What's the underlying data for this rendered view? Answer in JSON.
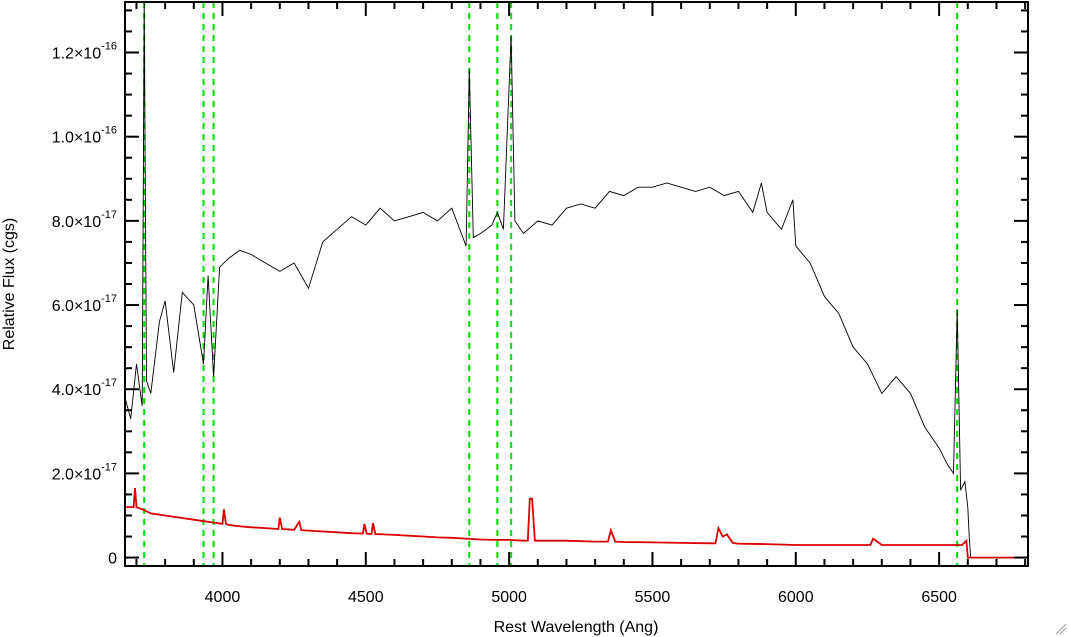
{
  "chart_data": {
    "type": "line",
    "title": "",
    "xlabel": "Rest Wavelength (Ang)",
    "ylabel": "Relative Flux (cgs)",
    "xlim": [
      3660,
      6810
    ],
    "ylim": [
      -2e-18,
      1.32e-16
    ],
    "x_ticks": [
      {
        "value": 4000,
        "label": "4000"
      },
      {
        "value": 4500,
        "label": "4500"
      },
      {
        "value": 5000,
        "label": "5000"
      },
      {
        "value": 5500,
        "label": "5500"
      },
      {
        "value": 6000,
        "label": "6000"
      },
      {
        "value": 6500,
        "label": "6500"
      }
    ],
    "y_ticks": [
      {
        "value": 0,
        "label": "0",
        "exp": ""
      },
      {
        "value": 2e-17,
        "label": "2.0×10",
        "exp": "-17"
      },
      {
        "value": 4e-17,
        "label": "4.0×10",
        "exp": "-17"
      },
      {
        "value": 6e-17,
        "label": "6.0×10",
        "exp": "-17"
      },
      {
        "value": 8e-17,
        "label": "8.0×10",
        "exp": "-17"
      },
      {
        "value": 1e-16,
        "label": "1.0×10",
        "exp": "-16"
      },
      {
        "value": 1.2e-16,
        "label": "1.2×10",
        "exp": "-16"
      }
    ],
    "vertical_markers": [
      3727,
      3934,
      3969,
      4861,
      4959,
      5007,
      6563
    ],
    "series": [
      {
        "color": "#000000",
        "x": [
          3660,
          3680,
          3700,
          3720,
          3727,
          3735,
          3750,
          3780,
          3800,
          3830,
          3860,
          3900,
          3934,
          3950,
          3969,
          3990,
          4020,
          4060,
          4100,
          4150,
          4200,
          4250,
          4300,
          4350,
          4400,
          4450,
          4500,
          4550,
          4600,
          4650,
          4700,
          4750,
          4800,
          4850,
          4861,
          4875,
          4900,
          4940,
          4959,
          4980,
          5007,
          5020,
          5050,
          5100,
          5150,
          5200,
          5250,
          5300,
          5350,
          5400,
          5450,
          5500,
          5550,
          5600,
          5650,
          5700,
          5750,
          5800,
          5850,
          5880,
          5900,
          5950,
          5990,
          6000,
          6050,
          6100,
          6150,
          6200,
          6250,
          6300,
          6350,
          6400,
          6450,
          6500,
          6530,
          6550,
          6563,
          6575,
          6590,
          6600,
          6605,
          6610,
          6650,
          6700,
          6750,
          6810
        ],
        "y": [
          3.8e-17,
          3.3e-17,
          4.6e-17,
          3.6e-17,
          1.32e-16,
          4.2e-17,
          3.9e-17,
          5.6e-17,
          6.1e-17,
          4.4e-17,
          6.3e-17,
          6e-17,
          4.6e-17,
          6.7e-17,
          4.3e-17,
          6.9e-17,
          7.1e-17,
          7.3e-17,
          7.2e-17,
          7e-17,
          6.8e-17,
          7e-17,
          6.4e-17,
          7.5e-17,
          7.8e-17,
          8.1e-17,
          7.9e-17,
          8.3e-17,
          8e-17,
          8.1e-17,
          8.2e-17,
          8e-17,
          8.3e-17,
          7.4e-17,
          1.16e-16,
          7.6e-17,
          7.7e-17,
          7.9e-17,
          8.2e-17,
          7.8e-17,
          1.24e-16,
          8e-17,
          7.7e-17,
          8e-17,
          7.9e-17,
          8.3e-17,
          8.4e-17,
          8.3e-17,
          8.7e-17,
          8.6e-17,
          8.8e-17,
          8.8e-17,
          8.9e-17,
          8.8e-17,
          8.7e-17,
          8.8e-17,
          8.6e-17,
          8.7e-17,
          8.2e-17,
          8.9e-17,
          8.2e-17,
          7.8e-17,
          8.5e-17,
          7.4e-17,
          7e-17,
          6.2e-17,
          5.8e-17,
          5e-17,
          4.6e-17,
          3.9e-17,
          4.3e-17,
          3.9e-17,
          3.1e-17,
          2.6e-17,
          2.2e-17,
          2e-17,
          5.9e-17,
          1.6e-17,
          1.8e-17,
          1.2e-17,
          5e-18,
          0,
          0,
          0,
          0,
          0
        ]
      },
      {
        "color": "#dd0000",
        "x": [
          3660,
          3680,
          3690,
          3695,
          3700,
          3720,
          3750,
          3800,
          3850,
          3900,
          3950,
          4000,
          4005,
          4012,
          4020,
          4050,
          4100,
          4150,
          4195,
          4200,
          4208,
          4250,
          4268,
          4275,
          4300,
          4350,
          4400,
          4450,
          4490,
          4495,
          4503,
          4520,
          4525,
          4533,
          4600,
          4650,
          4700,
          4750,
          4800,
          4850,
          4900,
          4950,
          5000,
          5050,
          5065,
          5072,
          5080,
          5090,
          5150,
          5200,
          5300,
          5345,
          5355,
          5370,
          5400,
          5500,
          5600,
          5700,
          5720,
          5730,
          5745,
          5760,
          5780,
          5800,
          5900,
          6000,
          6100,
          6200,
          6260,
          6270,
          6300,
          6400,
          6500,
          6580,
          6595,
          6600,
          6610,
          6700,
          6810
        ],
        "y": [
          1.2e-17,
          1.2e-17,
          1.2e-17,
          1.65e-17,
          1.2e-17,
          1.15e-17,
          1.05e-17,
          1e-17,
          9.5e-18,
          9e-18,
          8.5e-18,
          8e-18,
          1.15e-17,
          8e-18,
          7.8e-18,
          7.5e-18,
          7.2e-18,
          7e-18,
          6.8e-18,
          9.5e-18,
          6.8e-18,
          6.6e-18,
          8.5e-18,
          6.5e-18,
          6.4e-18,
          6.2e-18,
          6e-18,
          5.8e-18,
          5.7e-18,
          8e-18,
          5.7e-18,
          5.6e-18,
          8.2e-18,
          5.6e-18,
          5.4e-18,
          5.2e-18,
          5e-18,
          4.8e-18,
          4.7e-18,
          4.5e-18,
          4.3e-18,
          4.2e-18,
          4.2e-18,
          4e-18,
          4e-18,
          1.4e-17,
          1.4e-17,
          4e-18,
          4e-18,
          4e-18,
          3.8e-18,
          3.8e-18,
          6.5e-18,
          3.8e-18,
          3.7e-18,
          3.6e-18,
          3.5e-18,
          3.4e-18,
          3.4e-18,
          7e-18,
          5e-18,
          5.5e-18,
          3.5e-18,
          3.3e-18,
          3.2e-18,
          3e-18,
          3e-18,
          3e-18,
          3e-18,
          4.5e-18,
          3e-18,
          3e-18,
          3e-18,
          3e-18,
          4e-18,
          0,
          0,
          0,
          0
        ]
      }
    ]
  }
}
